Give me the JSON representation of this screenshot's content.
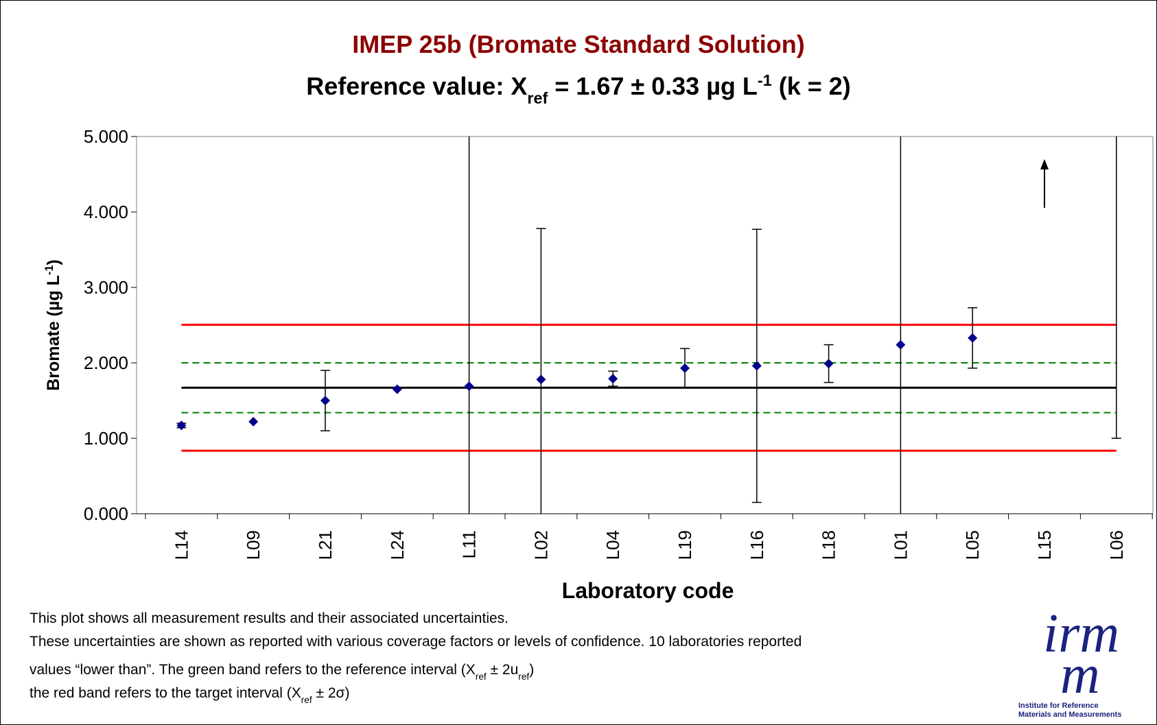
{
  "chart_data": {
    "type": "errorbar",
    "title": "IMEP 25b (Bromate Standard Solution)",
    "subtitle": [
      {
        "text": "Reference value: X"
      },
      {
        "text": "ref",
        "shift": "sub"
      },
      {
        "text": " = 1.67 ± 0.33 µg L"
      },
      {
        "text": "-1",
        "shift": "super"
      },
      {
        "text": " (k = 2)"
      }
    ],
    "ylabel": [
      {
        "text": "Bromate (µg L"
      },
      {
        "text": "-1",
        "shift": "super"
      },
      {
        "text": ")"
      }
    ],
    "xlabel": "Laboratory code",
    "categories": [
      "L14",
      "L09",
      "L21",
      "L24",
      "L11",
      "L02",
      "L04",
      "L19",
      "L16",
      "L18",
      "L01",
      "L05",
      "L15",
      "L06"
    ],
    "values": [
      1.17,
      1.22,
      1.5,
      1.65,
      1.69,
      1.78,
      1.79,
      1.93,
      1.96,
      1.99,
      2.24,
      2.33,
      null,
      5.5
    ],
    "errors": [
      0.03,
      null,
      0.4,
      null,
      3.5,
      2.0,
      0.1,
      0.26,
      1.81,
      0.25,
      3.0,
      0.4,
      null,
      4.5
    ],
    "color": "#00008b",
    "ylim": [
      0,
      5
    ],
    "yticks": [
      {
        "value": 0,
        "label": "0.000"
      },
      {
        "value": 1,
        "label": "1.000"
      },
      {
        "value": 2,
        "label": "2.000"
      },
      {
        "value": 3,
        "label": "3.000"
      },
      {
        "value": 4,
        "label": "4.000"
      },
      {
        "value": 5,
        "label": "5.000"
      }
    ],
    "reference_lines": [
      {
        "value": 2.505,
        "color": "#ff0000",
        "dashed": false
      },
      {
        "value": 2.0,
        "color": "#008000",
        "dashed": true
      },
      {
        "value": 1.67,
        "color": "#000000",
        "dashed": false
      },
      {
        "value": 1.34,
        "color": "#008000",
        "dashed": true
      },
      {
        "value": 0.835,
        "color": "#ff0000",
        "dashed": false
      }
    ],
    "footnotes": [
      [
        {
          "text": "This plot shows all measurement results and their associated uncertainties."
        }
      ],
      [
        {
          "text": "These uncertainties are shown as reported with various coverage factors or levels of confidence. 10 laboratories reported"
        }
      ],
      [
        {
          "text": "values “lower than”. The green band refers to the reference interval (X"
        },
        {
          "text": "ref",
          "shift": "sub"
        },
        {
          "text": " ± 2u"
        },
        {
          "text": "ref",
          "shift": "sub"
        },
        {
          "text": ")"
        }
      ],
      [
        {
          "text": "the red band refers to the target interval (X"
        },
        {
          "text": "ref",
          "shift": "sub"
        },
        {
          "text": " ± 2σ)"
        }
      ]
    ],
    "logo": {
      "mark": "irm",
      "mark2": "m",
      "line1": "Institute for Reference",
      "line2": "Materials and Measurements"
    }
  }
}
